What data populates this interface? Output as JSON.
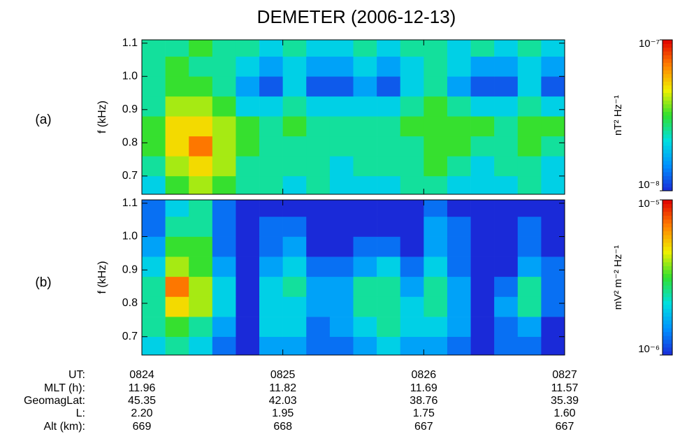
{
  "title": "DEMETER (2006-12-13)",
  "chart_data": [
    {
      "type": "heatmap",
      "label": "(a)",
      "ylabel": "f (kHz)",
      "x": [
        0,
        10,
        20,
        30,
        40,
        50,
        60,
        70,
        80,
        90,
        100,
        110,
        120,
        130,
        140,
        150,
        160,
        170,
        180
      ],
      "y": [
        0.645,
        0.7,
        0.76,
        0.82,
        0.88,
        0.94,
        1.0,
        1.06,
        1.11
      ],
      "z": [
        [
          2e-08,
          3.2e-08,
          4e-08,
          3.2e-08,
          2.5e-08,
          2.5e-08,
          2e-08,
          2.5e-08,
          2e-08,
          2e-08,
          2e-08,
          2.5e-08,
          2.5e-08,
          2e-08,
          2e-08,
          2e-08,
          2.5e-08,
          2e-08
        ],
        [
          2.5e-08,
          4e-08,
          5e-08,
          4e-08,
          2.5e-08,
          2.5e-08,
          2.5e-08,
          2.5e-08,
          2e-08,
          2.5e-08,
          2.5e-08,
          2.5e-08,
          3.2e-08,
          2.5e-08,
          2e-08,
          2.5e-08,
          2.5e-08,
          2e-08
        ],
        [
          3.2e-08,
          5e-08,
          7e-08,
          4e-08,
          3.2e-08,
          2.5e-08,
          2.5e-08,
          2.5e-08,
          2.5e-08,
          2.5e-08,
          2.5e-08,
          2.5e-08,
          3.2e-08,
          3.2e-08,
          2.5e-08,
          2.5e-08,
          3.2e-08,
          2.5e-08
        ],
        [
          3.2e-08,
          5e-08,
          5e-08,
          4e-08,
          3.2e-08,
          2.5e-08,
          3.2e-08,
          2.5e-08,
          2.5e-08,
          2.5e-08,
          2.5e-08,
          3.2e-08,
          3.2e-08,
          3.2e-08,
          3.2e-08,
          2.5e-08,
          3.2e-08,
          3.2e-08
        ],
        [
          2.5e-08,
          4e-08,
          4e-08,
          3.2e-08,
          2e-08,
          2e-08,
          2.5e-08,
          2e-08,
          2e-08,
          2e-08,
          2e-08,
          2.5e-08,
          3.2e-08,
          2.5e-08,
          2e-08,
          2e-08,
          2.5e-08,
          2e-08
        ],
        [
          2.5e-08,
          3.2e-08,
          3.2e-08,
          2.5e-08,
          1.6e-08,
          1.2e-08,
          2e-08,
          1.2e-08,
          1.2e-08,
          1.6e-08,
          1.2e-08,
          2e-08,
          2.5e-08,
          1.6e-08,
          1.2e-08,
          1.2e-08,
          2e-08,
          1.2e-08
        ],
        [
          2.5e-08,
          3.2e-08,
          2.5e-08,
          2.5e-08,
          2e-08,
          1.6e-08,
          2e-08,
          1.6e-08,
          1.6e-08,
          2e-08,
          1.6e-08,
          2e-08,
          2.5e-08,
          2e-08,
          1.6e-08,
          1.6e-08,
          2e-08,
          1.6e-08
        ],
        [
          2.5e-08,
          2.5e-08,
          3.2e-08,
          2.5e-08,
          2.5e-08,
          2e-08,
          2.5e-08,
          2e-08,
          2e-08,
          2.5e-08,
          2e-08,
          2.5e-08,
          2.5e-08,
          2e-08,
          2.5e-08,
          2e-08,
          2.5e-08,
          2e-08
        ]
      ],
      "xlim": [
        0,
        180
      ],
      "xticks": [
        0,
        60,
        120,
        180
      ],
      "ylim": [
        0.645,
        1.11
      ],
      "yticks": [
        0.7,
        0.8,
        0.9,
        {
          "value": 1,
          "label": "1.0"
        },
        1.1
      ],
      "colorbar": {
        "label": "nT² Hz⁻¹",
        "lim": [
          1e-08,
          1e-07
        ],
        "log": true,
        "ticks": [
          {
            "value": 1e-08,
            "label": "10⁻⁸"
          },
          {
            "value": 1e-07,
            "label": "10⁻⁷"
          }
        ]
      },
      "colormap": [
        "#1a2ad8",
        "#0090ff",
        "#00e0e0",
        "#30e030",
        "#f0f000",
        "#ff8000",
        "#e00000"
      ]
    },
    {
      "type": "heatmap",
      "label": "(b)",
      "ylabel": "f (kHz)",
      "x": [
        0,
        10,
        20,
        30,
        40,
        50,
        60,
        70,
        80,
        90,
        100,
        110,
        120,
        130,
        140,
        150,
        160,
        170,
        180
      ],
      "y": [
        0.645,
        0.7,
        0.76,
        0.82,
        0.88,
        0.94,
        1.0,
        1.06,
        1.11
      ],
      "z": [
        [
          2e-06,
          2.5e-06,
          2e-06,
          1.3e-06,
          1e-06,
          1.6e-06,
          1.6e-06,
          1.3e-06,
          1.3e-06,
          1.6e-06,
          2e-06,
          1.6e-06,
          1.6e-06,
          1.3e-06,
          1e-06,
          1.3e-06,
          1.3e-06,
          1e-06
        ],
        [
          2.5e-06,
          3.2e-06,
          2.5e-06,
          1.6e-06,
          1e-06,
          2e-06,
          2e-06,
          1.3e-06,
          1.6e-06,
          2e-06,
          2.5e-06,
          2e-06,
          2e-06,
          1.6e-06,
          1e-06,
          1.3e-06,
          1.6e-06,
          1e-06
        ],
        [
          2.5e-06,
          5e-06,
          4e-06,
          2e-06,
          1e-06,
          2e-06,
          2e-06,
          1.6e-06,
          1.6e-06,
          2.5e-06,
          2.5e-06,
          2e-06,
          2.5e-06,
          1.6e-06,
          1e-06,
          1.6e-06,
          2.5e-06,
          1.3e-06
        ],
        [
          2.5e-06,
          7e-06,
          4e-06,
          2e-06,
          1e-06,
          2e-06,
          2.5e-06,
          1.6e-06,
          1.6e-06,
          2.5e-06,
          2.5e-06,
          1.6e-06,
          2.5e-06,
          1.6e-06,
          1e-06,
          1.3e-06,
          2.5e-06,
          1.3e-06
        ],
        [
          2e-06,
          4e-06,
          3.2e-06,
          1.6e-06,
          1e-06,
          1.6e-06,
          2e-06,
          1.3e-06,
          1.3e-06,
          1.6e-06,
          2e-06,
          1.3e-06,
          2e-06,
          1.3e-06,
          1e-06,
          1e-06,
          1.6e-06,
          1.3e-06
        ],
        [
          1.6e-06,
          3.2e-06,
          3.2e-06,
          1.3e-06,
          1e-06,
          1.3e-06,
          1.6e-06,
          1e-06,
          1e-06,
          1.3e-06,
          1.3e-06,
          1e-06,
          1.6e-06,
          1.3e-06,
          1e-06,
          1e-06,
          1.3e-06,
          1e-06
        ],
        [
          1.3e-06,
          2.5e-06,
          2.5e-06,
          1.3e-06,
          1e-06,
          1.3e-06,
          1.3e-06,
          1e-06,
          1e-06,
          1e-06,
          1e-06,
          1e-06,
          1.6e-06,
          1.3e-06,
          1e-06,
          1e-06,
          1.3e-06,
          1e-06
        ],
        [
          1.3e-06,
          2e-06,
          2.5e-06,
          1.3e-06,
          1e-06,
          1e-06,
          1e-06,
          1e-06,
          1e-06,
          1e-06,
          1e-06,
          1e-06,
          1.3e-06,
          1e-06,
          1e-06,
          1e-06,
          1e-06,
          1e-06
        ]
      ],
      "xlim": [
        0,
        180
      ],
      "xticks": [
        {
          "value": 0,
          "label": "0824"
        },
        {
          "value": 60,
          "label": "0825"
        },
        {
          "value": 120,
          "label": "0826"
        },
        {
          "value": 180,
          "label": "0827"
        }
      ],
      "ylim": [
        0.645,
        1.11
      ],
      "yticks": [
        0.7,
        0.8,
        0.9,
        {
          "value": 1,
          "label": "1.0"
        },
        1.1
      ],
      "colorbar": {
        "label": "mV² m⁻² Hz⁻¹",
        "lim": [
          1e-06,
          1e-05
        ],
        "log": true,
        "ticks": [
          {
            "value": 1e-06,
            "label": "10⁻⁶"
          },
          {
            "value": 1e-05,
            "label": "10⁻⁵"
          }
        ]
      },
      "colormap": [
        "#1a2ad8",
        "#0090ff",
        "#00e0e0",
        "#30e030",
        "#f0f000",
        "#ff8000",
        "#e00000"
      ]
    }
  ],
  "orbit_info": {
    "labels": [
      "UT:",
      "MLT (h):",
      "GeomagLat:",
      "L:",
      "Alt (km):"
    ],
    "rows": [
      [
        "11.96",
        "11.82",
        "11.69",
        "11.57"
      ],
      [
        "45.35",
        "42.03",
        "38.76",
        "35.39"
      ],
      [
        "2.20",
        "1.95",
        "1.75",
        "1.60"
      ],
      [
        "669",
        "668",
        "667",
        "667"
      ]
    ]
  }
}
